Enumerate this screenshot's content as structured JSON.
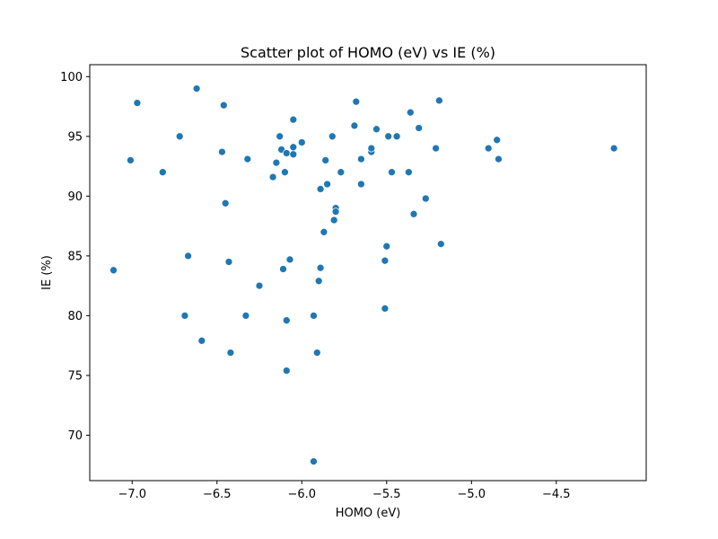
{
  "chart_data": {
    "type": "scatter",
    "title": "Scatter plot of HOMO (eV) vs IE (%)",
    "xlabel": "HOMO (eV)",
    "ylabel": "IE (%)",
    "xlim": [
      -7.25,
      -3.97
    ],
    "ylim": [
      66.2,
      101.0
    ],
    "xticks": [
      -7.0,
      -6.5,
      -6.0,
      -5.5,
      -5.0,
      -4.5
    ],
    "xtick_labels": [
      "−7.0",
      "−6.5",
      "−6.0",
      "−5.5",
      "−5.0",
      "−4.5"
    ],
    "yticks": [
      70,
      75,
      80,
      85,
      90,
      95,
      100
    ],
    "ytick_labels": [
      "70",
      "75",
      "80",
      "85",
      "90",
      "95",
      "100"
    ],
    "grid": false,
    "marker_color": "#1f77b4",
    "points": [
      [
        -7.11,
        83.8
      ],
      [
        -7.01,
        93.0
      ],
      [
        -6.97,
        97.8
      ],
      [
        -6.82,
        92.0
      ],
      [
        -6.72,
        95.0
      ],
      [
        -6.69,
        80.0
      ],
      [
        -6.67,
        85.0
      ],
      [
        -6.62,
        99.0
      ],
      [
        -6.59,
        77.9
      ],
      [
        -6.47,
        93.7
      ],
      [
        -6.46,
        97.6
      ],
      [
        -6.45,
        89.4
      ],
      [
        -6.43,
        84.5
      ],
      [
        -6.42,
        76.9
      ],
      [
        -6.33,
        80.0
      ],
      [
        -6.32,
        93.1
      ],
      [
        -6.25,
        82.5
      ],
      [
        -6.17,
        91.6
      ],
      [
        -6.15,
        92.8
      ],
      [
        -6.13,
        95.0
      ],
      [
        -6.12,
        93.9
      ],
      [
        -6.11,
        83.9
      ],
      [
        -6.1,
        92.0
      ],
      [
        -6.09,
        93.6
      ],
      [
        -6.09,
        79.6
      ],
      [
        -6.09,
        75.4
      ],
      [
        -6.07,
        84.7
      ],
      [
        -6.05,
        96.4
      ],
      [
        -6.05,
        94.1
      ],
      [
        -6.05,
        93.5
      ],
      [
        -6.0,
        94.5
      ],
      [
        -5.93,
        80.0
      ],
      [
        -5.93,
        67.8
      ],
      [
        -5.91,
        76.9
      ],
      [
        -5.9,
        82.9
      ],
      [
        -5.89,
        84.0
      ],
      [
        -5.89,
        90.6
      ],
      [
        -5.87,
        87.0
      ],
      [
        -5.86,
        93.0
      ],
      [
        -5.85,
        91.0
      ],
      [
        -5.82,
        95.0
      ],
      [
        -5.81,
        88.0
      ],
      [
        -5.8,
        89.0
      ],
      [
        -5.8,
        88.7
      ],
      [
        -5.77,
        92.0
      ],
      [
        -5.69,
        95.9
      ],
      [
        -5.68,
        97.9
      ],
      [
        -5.65,
        91.0
      ],
      [
        -5.65,
        93.1
      ],
      [
        -5.59,
        93.7
      ],
      [
        -5.59,
        94.0
      ],
      [
        -5.56,
        95.6
      ],
      [
        -5.51,
        80.6
      ],
      [
        -5.51,
        84.6
      ],
      [
        -5.5,
        85.8
      ],
      [
        -5.49,
        95.0
      ],
      [
        -5.47,
        92.0
      ],
      [
        -5.44,
        95.0
      ],
      [
        -5.37,
        92.0
      ],
      [
        -5.36,
        97.0
      ],
      [
        -5.34,
        88.5
      ],
      [
        -5.31,
        95.7
      ],
      [
        -5.27,
        89.8
      ],
      [
        -5.21,
        94.0
      ],
      [
        -5.19,
        98.0
      ],
      [
        -5.18,
        86.0
      ],
      [
        -4.9,
        94.0
      ],
      [
        -4.85,
        94.7
      ],
      [
        -4.84,
        93.1
      ],
      [
        -4.16,
        94.0
      ]
    ]
  }
}
